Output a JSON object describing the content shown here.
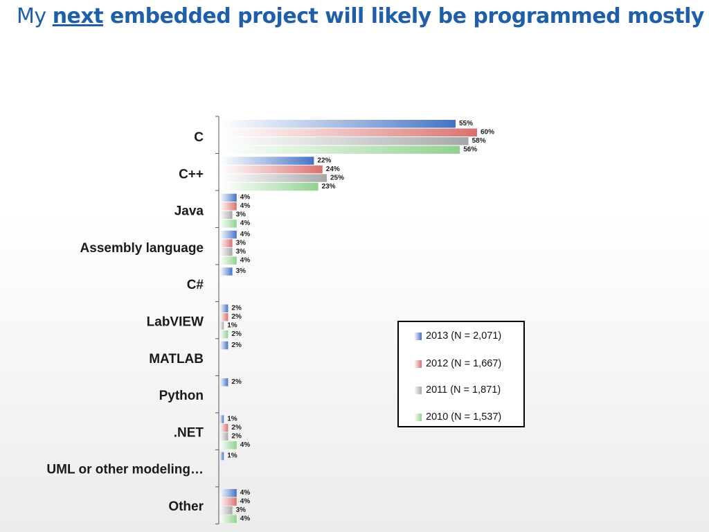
{
  "title": {
    "pre": "My ",
    "underlined": "next",
    "post": " embedded project will likely be programmed mostly in:"
  },
  "chart_data": {
    "type": "bar",
    "orientation": "horizontal",
    "title": "My next embedded project will likely be programmed mostly in:",
    "xlim": [
      0,
      60
    ],
    "grid": false,
    "legend_position": "center-right",
    "categories": [
      "C",
      "C++",
      "Java",
      "Assembly language",
      "C#",
      "LabVIEW",
      "MATLAB",
      "Python",
      ".NET",
      "UML or other modeling…",
      "Other"
    ],
    "series": [
      {
        "name": "2013 (N = 2,071)",
        "color": "#4472c4",
        "values": [
          55,
          22,
          4,
          4,
          3,
          2,
          2,
          2,
          1,
          1,
          4
        ],
        "labels": [
          "55%",
          "22%",
          "4%",
          "4%",
          "3%",
          "2%",
          "2%",
          "2%",
          "1%",
          "1%",
          "4%"
        ]
      },
      {
        "name": "2012 (N = 1,667)",
        "color": "#d9706e",
        "values": [
          60,
          24,
          4,
          3,
          null,
          2,
          null,
          null,
          2,
          null,
          4
        ],
        "labels": [
          "60%",
          "24%",
          "4%",
          "3%",
          null,
          "2%",
          null,
          null,
          "2%",
          null,
          "4%"
        ]
      },
      {
        "name": "2011 (N = 1,871)",
        "color": "#a6a6a6",
        "values": [
          58,
          25,
          3,
          3,
          null,
          1,
          null,
          null,
          2,
          null,
          3
        ],
        "labels": [
          "58%",
          "25%",
          "3%",
          "3%",
          null,
          "1%",
          null,
          null,
          "2%",
          null,
          "3%"
        ]
      },
      {
        "name": "2010 (N = 1,537)",
        "color": "#8fd08f",
        "values": [
          56,
          23,
          4,
          4,
          null,
          2,
          null,
          null,
          4,
          null,
          4
        ],
        "labels": [
          "56%",
          "23%",
          "4%",
          "4%",
          null,
          "2%",
          null,
          null,
          "4%",
          null,
          "4%"
        ]
      }
    ]
  }
}
